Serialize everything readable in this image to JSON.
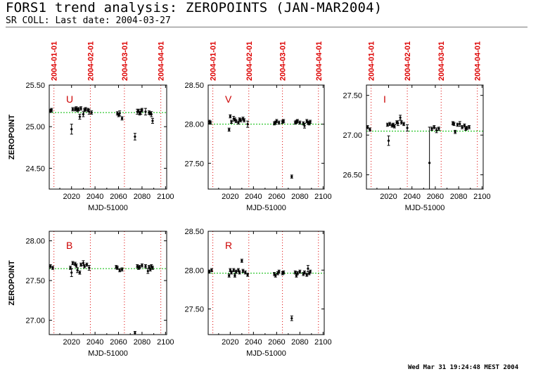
{
  "header": {
    "title": "FORS1 trend analysis: ZEROPOINTS (JAN-MAR2004)",
    "subtitle": "SR COLL: Last date: 2004-03-27"
  },
  "footer": {
    "timestamp": "Wed Mar 31 19:24:48 MEST 2004"
  },
  "colors": {
    "date_marker": "#dd0000",
    "mean_line": "#00bb00",
    "points": "#000000",
    "panel_label": "#cc0000"
  },
  "chart_data": [
    {
      "type": "scatter",
      "panel_label": "U",
      "xlabel": "MJD-51000",
      "ylabel": "ZEROPOINT",
      "xlim": [
        2001,
        2101
      ],
      "ylim": [
        24.25,
        25.5
      ],
      "xticks": [
        2020,
        2040,
        2060,
        2080,
        2100
      ],
      "yticks": [
        25.5,
        25.0,
        24.5
      ],
      "ytick_labels": [
        "25.50",
        "25.00",
        "24.50"
      ],
      "date_markers": [
        {
          "label": "2004-01-01",
          "x": 2005
        },
        {
          "label": "2004-02-01",
          "x": 2036
        },
        {
          "label": "2004-03-01",
          "x": 2065
        },
        {
          "label": "2004-04-01",
          "x": 2096
        }
      ],
      "mean": 25.17,
      "points": [
        {
          "x": 2002,
          "y": 25.19,
          "err": 0.02
        },
        {
          "x": 2003,
          "y": 25.2,
          "err": 0.02
        },
        {
          "x": 2020,
          "y": 24.97,
          "err": 0.06
        },
        {
          "x": 2021,
          "y": 25.21,
          "err": 0.02
        },
        {
          "x": 2023,
          "y": 25.21,
          "err": 0.02
        },
        {
          "x": 2024,
          "y": 25.22,
          "err": 0.02
        },
        {
          "x": 2025,
          "y": 25.2,
          "err": 0.02
        },
        {
          "x": 2026,
          "y": 25.21,
          "err": 0.02
        },
        {
          "x": 2027,
          "y": 25.12,
          "err": 0.03
        },
        {
          "x": 2028,
          "y": 25.22,
          "err": 0.02
        },
        {
          "x": 2030,
          "y": 25.15,
          "err": 0.03
        },
        {
          "x": 2031,
          "y": 25.2,
          "err": 0.02
        },
        {
          "x": 2032,
          "y": 25.21,
          "err": 0.02
        },
        {
          "x": 2034,
          "y": 25.2,
          "err": 0.02
        },
        {
          "x": 2035,
          "y": 25.18,
          "err": 0.03
        },
        {
          "x": 2037,
          "y": 25.17,
          "err": 0.02
        },
        {
          "x": 2059,
          "y": 25.16,
          "err": 0.02
        },
        {
          "x": 2060,
          "y": 25.14,
          "err": 0.02
        },
        {
          "x": 2061,
          "y": 25.16,
          "err": 0.03
        },
        {
          "x": 2063,
          "y": 25.1,
          "err": 0.02
        },
        {
          "x": 2074,
          "y": 24.88,
          "err": 0.04
        },
        {
          "x": 2076,
          "y": 25.18,
          "err": 0.03
        },
        {
          "x": 2077,
          "y": 25.19,
          "err": 0.02
        },
        {
          "x": 2078,
          "y": 25.16,
          "err": 0.02
        },
        {
          "x": 2079,
          "y": 25.18,
          "err": 0.03
        },
        {
          "x": 2080,
          "y": 25.2,
          "err": 0.02
        },
        {
          "x": 2083,
          "y": 25.18,
          "err": 0.04
        },
        {
          "x": 2086,
          "y": 25.17,
          "err": 0.02
        },
        {
          "x": 2087,
          "y": 25.16,
          "err": 0.02
        },
        {
          "x": 2088,
          "y": 25.15,
          "err": 0.03
        },
        {
          "x": 2089,
          "y": 25.07,
          "err": 0.03
        }
      ]
    },
    {
      "type": "scatter",
      "panel_label": "V",
      "xlabel": "MJD-51000",
      "ylabel": "",
      "xlim": [
        2001,
        2101
      ],
      "ylim": [
        27.17,
        28.5
      ],
      "xticks": [
        2020,
        2040,
        2060,
        2080,
        2100
      ],
      "yticks": [
        28.5,
        28.0,
        27.5
      ],
      "ytick_labels": [
        "28.50",
        "28.00",
        "27.50"
      ],
      "date_markers": [
        {
          "label": "2004-01-01",
          "x": 2005
        },
        {
          "label": "2004-02-01",
          "x": 2036
        },
        {
          "label": "2004-03-01",
          "x": 2065
        },
        {
          "label": "2004-04-01",
          "x": 2096
        }
      ],
      "mean": 28.0,
      "points": [
        {
          "x": 2002,
          "y": 28.03,
          "err": 0.02
        },
        {
          "x": 2003,
          "y": 28.02,
          "err": 0.02
        },
        {
          "x": 2019,
          "y": 27.93,
          "err": 0.02
        },
        {
          "x": 2020,
          "y": 28.1,
          "err": 0.02
        },
        {
          "x": 2021,
          "y": 28.03,
          "err": 0.02
        },
        {
          "x": 2023,
          "y": 28.07,
          "err": 0.03
        },
        {
          "x": 2024,
          "y": 28.06,
          "err": 0.02
        },
        {
          "x": 2025,
          "y": 28.04,
          "err": 0.02
        },
        {
          "x": 2027,
          "y": 28.02,
          "err": 0.02
        },
        {
          "x": 2028,
          "y": 28.06,
          "err": 0.02
        },
        {
          "x": 2029,
          "y": 28.05,
          "err": 0.02
        },
        {
          "x": 2031,
          "y": 28.07,
          "err": 0.02
        },
        {
          "x": 2032,
          "y": 28.05,
          "err": 0.02
        },
        {
          "x": 2035,
          "y": 28.0,
          "err": 0.04
        },
        {
          "x": 2058,
          "y": 28.01,
          "err": 0.02
        },
        {
          "x": 2059,
          "y": 28.02,
          "err": 0.02
        },
        {
          "x": 2060,
          "y": 28.04,
          "err": 0.02
        },
        {
          "x": 2062,
          "y": 28.02,
          "err": 0.02
        },
        {
          "x": 2065,
          "y": 28.03,
          "err": 0.02
        },
        {
          "x": 2066,
          "y": 28.04,
          "err": 0.02
        },
        {
          "x": 2073,
          "y": 27.33,
          "err": 0.02
        },
        {
          "x": 2076,
          "y": 28.02,
          "err": 0.02
        },
        {
          "x": 2077,
          "y": 28.03,
          "err": 0.02
        },
        {
          "x": 2078,
          "y": 28.04,
          "err": 0.02
        },
        {
          "x": 2080,
          "y": 28.02,
          "err": 0.02
        },
        {
          "x": 2083,
          "y": 28.01,
          "err": 0.02
        },
        {
          "x": 2084,
          "y": 27.98,
          "err": 0.03
        },
        {
          "x": 2086,
          "y": 28.04,
          "err": 0.02
        },
        {
          "x": 2087,
          "y": 28.02,
          "err": 0.02
        },
        {
          "x": 2088,
          "y": 28.01,
          "err": 0.02
        },
        {
          "x": 2089,
          "y": 28.03,
          "err": 0.02
        }
      ]
    },
    {
      "type": "scatter",
      "panel_label": "I",
      "xlabel": "MJD-51000",
      "ylabel": "",
      "xlim": [
        2001,
        2101
      ],
      "ylim": [
        26.32,
        27.63
      ],
      "xticks": [
        2020,
        2040,
        2060,
        2080,
        2100
      ],
      "yticks": [
        27.5,
        27.0,
        26.5
      ],
      "ytick_labels": [
        "27.50",
        "27.00",
        "26.50"
      ],
      "date_markers": [
        {
          "label": "2004-01-01",
          "x": 2005
        },
        {
          "label": "2004-02-01",
          "x": 2036
        },
        {
          "label": "2004-03-01",
          "x": 2065
        },
        {
          "label": "2004-04-01",
          "x": 2096
        }
      ],
      "mean": 27.05,
      "points": [
        {
          "x": 2002,
          "y": 27.1,
          "err": 0.02
        },
        {
          "x": 2004,
          "y": 27.07,
          "err": 0.02
        },
        {
          "x": 2019,
          "y": 27.13,
          "err": 0.02
        },
        {
          "x": 2020,
          "y": 26.93,
          "err": 0.06
        },
        {
          "x": 2021,
          "y": 27.14,
          "err": 0.02
        },
        {
          "x": 2023,
          "y": 27.12,
          "err": 0.02
        },
        {
          "x": 2024,
          "y": 27.13,
          "err": 0.02
        },
        {
          "x": 2025,
          "y": 27.11,
          "err": 0.02
        },
        {
          "x": 2027,
          "y": 27.16,
          "err": 0.02
        },
        {
          "x": 2028,
          "y": 27.15,
          "err": 0.03
        },
        {
          "x": 2030,
          "y": 27.22,
          "err": 0.03
        },
        {
          "x": 2031,
          "y": 27.16,
          "err": 0.02
        },
        {
          "x": 2033,
          "y": 27.14,
          "err": 0.02
        },
        {
          "x": 2036,
          "y": 27.09,
          "err": 0.04
        },
        {
          "x": 2055,
          "y": 26.65,
          "err": 0.45
        },
        {
          "x": 2057,
          "y": 27.08,
          "err": 0.02
        },
        {
          "x": 2059,
          "y": 27.1,
          "err": 0.02
        },
        {
          "x": 2061,
          "y": 27.06,
          "err": 0.03
        },
        {
          "x": 2063,
          "y": 27.08,
          "err": 0.02
        },
        {
          "x": 2075,
          "y": 27.15,
          "err": 0.02
        },
        {
          "x": 2076,
          "y": 27.14,
          "err": 0.02
        },
        {
          "x": 2077,
          "y": 27.04,
          "err": 0.02
        },
        {
          "x": 2079,
          "y": 27.13,
          "err": 0.02
        },
        {
          "x": 2081,
          "y": 27.14,
          "err": 0.03
        },
        {
          "x": 2083,
          "y": 27.1,
          "err": 0.02
        },
        {
          "x": 2085,
          "y": 27.12,
          "err": 0.02
        },
        {
          "x": 2086,
          "y": 27.08,
          "err": 0.02
        },
        {
          "x": 2087,
          "y": 27.09,
          "err": 0.02
        },
        {
          "x": 2089,
          "y": 27.1,
          "err": 0.02
        }
      ]
    },
    {
      "type": "scatter",
      "panel_label": "B",
      "xlabel": "MJD-51000",
      "ylabel": "ZEROPOINT",
      "xlim": [
        2001,
        2101
      ],
      "ylim": [
        26.82,
        28.12
      ],
      "xticks": [
        2020,
        2040,
        2060,
        2080,
        2100
      ],
      "yticks": [
        28.0,
        27.5,
        27.0
      ],
      "ytick_labels": [
        "28.00",
        "27.50",
        "27.00"
      ],
      "date_markers": [
        {
          "label": "",
          "x": 2005
        },
        {
          "label": "",
          "x": 2036
        },
        {
          "label": "",
          "x": 2065
        },
        {
          "label": "",
          "x": 2096
        }
      ],
      "mean": 27.65,
      "points": [
        {
          "x": 2002,
          "y": 27.68,
          "err": 0.02
        },
        {
          "x": 2004,
          "y": 27.66,
          "err": 0.02
        },
        {
          "x": 2019,
          "y": 27.66,
          "err": 0.02
        },
        {
          "x": 2020,
          "y": 27.6,
          "err": 0.05
        },
        {
          "x": 2021,
          "y": 27.72,
          "err": 0.02
        },
        {
          "x": 2023,
          "y": 27.71,
          "err": 0.02
        },
        {
          "x": 2024,
          "y": 27.69,
          "err": 0.02
        },
        {
          "x": 2025,
          "y": 27.63,
          "err": 0.03
        },
        {
          "x": 2027,
          "y": 27.6,
          "err": 0.02
        },
        {
          "x": 2028,
          "y": 27.7,
          "err": 0.02
        },
        {
          "x": 2030,
          "y": 27.72,
          "err": 0.03
        },
        {
          "x": 2031,
          "y": 27.68,
          "err": 0.02
        },
        {
          "x": 2033,
          "y": 27.7,
          "err": 0.02
        },
        {
          "x": 2035,
          "y": 27.66,
          "err": 0.03
        },
        {
          "x": 2058,
          "y": 27.67,
          "err": 0.02
        },
        {
          "x": 2059,
          "y": 27.66,
          "err": 0.02
        },
        {
          "x": 2061,
          "y": 27.63,
          "err": 0.02
        },
        {
          "x": 2063,
          "y": 27.64,
          "err": 0.02
        },
        {
          "x": 2074,
          "y": 26.84,
          "err": 0.02
        },
        {
          "x": 2076,
          "y": 27.68,
          "err": 0.02
        },
        {
          "x": 2077,
          "y": 27.66,
          "err": 0.02
        },
        {
          "x": 2078,
          "y": 27.67,
          "err": 0.02
        },
        {
          "x": 2080,
          "y": 27.69,
          "err": 0.02
        },
        {
          "x": 2083,
          "y": 27.68,
          "err": 0.02
        },
        {
          "x": 2085,
          "y": 27.62,
          "err": 0.03
        },
        {
          "x": 2086,
          "y": 27.67,
          "err": 0.02
        },
        {
          "x": 2087,
          "y": 27.64,
          "err": 0.02
        },
        {
          "x": 2088,
          "y": 27.68,
          "err": 0.02
        },
        {
          "x": 2089,
          "y": 27.66,
          "err": 0.02
        }
      ]
    },
    {
      "type": "scatter",
      "panel_label": "R",
      "xlabel": "MJD-51000",
      "ylabel": "",
      "xlim": [
        2001,
        2101
      ],
      "ylim": [
        27.17,
        28.5
      ],
      "xticks": [
        2020,
        2040,
        2060,
        2080,
        2100
      ],
      "yticks": [
        28.5,
        28.0,
        27.5
      ],
      "ytick_labels": [
        "28.50",
        "28.00",
        "27.50"
      ],
      "date_markers": [
        {
          "label": "",
          "x": 2005
        },
        {
          "label": "",
          "x": 2036
        },
        {
          "label": "",
          "x": 2065
        },
        {
          "label": "",
          "x": 2096
        }
      ],
      "mean": 27.96,
      "points": [
        {
          "x": 2002,
          "y": 27.98,
          "err": 0.02
        },
        {
          "x": 2004,
          "y": 28.0,
          "err": 0.02
        },
        {
          "x": 2019,
          "y": 27.93,
          "err": 0.02
        },
        {
          "x": 2020,
          "y": 28.0,
          "err": 0.02
        },
        {
          "x": 2021,
          "y": 27.97,
          "err": 0.02
        },
        {
          "x": 2023,
          "y": 28.0,
          "err": 0.02
        },
        {
          "x": 2024,
          "y": 27.93,
          "err": 0.02
        },
        {
          "x": 2025,
          "y": 27.98,
          "err": 0.02
        },
        {
          "x": 2027,
          "y": 28.0,
          "err": 0.02
        },
        {
          "x": 2028,
          "y": 27.97,
          "err": 0.02
        },
        {
          "x": 2030,
          "y": 28.12,
          "err": 0.02
        },
        {
          "x": 2031,
          "y": 27.99,
          "err": 0.02
        },
        {
          "x": 2033,
          "y": 27.97,
          "err": 0.02
        },
        {
          "x": 2035,
          "y": 27.94,
          "err": 0.02
        },
        {
          "x": 2058,
          "y": 27.95,
          "err": 0.02
        },
        {
          "x": 2059,
          "y": 27.93,
          "err": 0.02
        },
        {
          "x": 2061,
          "y": 27.96,
          "err": 0.02
        },
        {
          "x": 2062,
          "y": 27.98,
          "err": 0.02
        },
        {
          "x": 2065,
          "y": 27.96,
          "err": 0.02
        },
        {
          "x": 2066,
          "y": 27.97,
          "err": 0.02
        },
        {
          "x": 2073,
          "y": 27.38,
          "err": 0.03
        },
        {
          "x": 2076,
          "y": 27.97,
          "err": 0.02
        },
        {
          "x": 2077,
          "y": 27.93,
          "err": 0.02
        },
        {
          "x": 2078,
          "y": 27.96,
          "err": 0.02
        },
        {
          "x": 2080,
          "y": 27.98,
          "err": 0.02
        },
        {
          "x": 2083,
          "y": 27.95,
          "err": 0.02
        },
        {
          "x": 2084,
          "y": 27.97,
          "err": 0.02
        },
        {
          "x": 2086,
          "y": 27.94,
          "err": 0.02
        },
        {
          "x": 2087,
          "y": 28.02,
          "err": 0.04
        },
        {
          "x": 2088,
          "y": 27.96,
          "err": 0.02
        },
        {
          "x": 2089,
          "y": 27.98,
          "err": 0.02
        }
      ]
    }
  ]
}
